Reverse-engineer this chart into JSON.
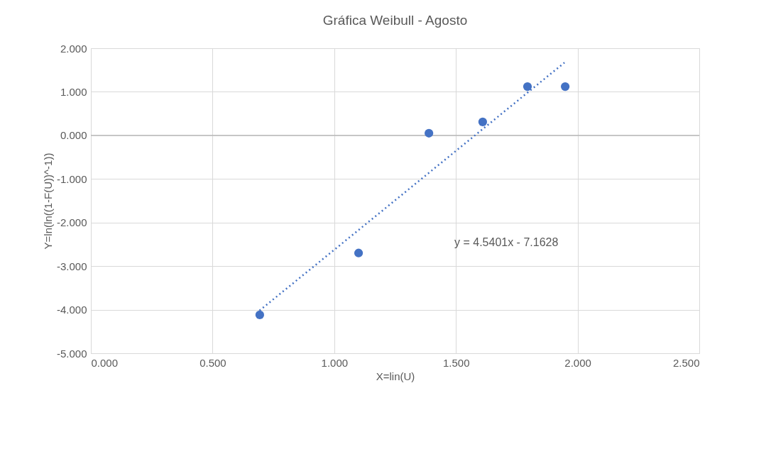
{
  "chart_data": {
    "type": "scatter",
    "title": "Gráfica Weibull - Agosto",
    "xlabel": "X=lin(U)",
    "ylabel": "Y=ln(ln((1-F(U))^-1))",
    "series": [
      {
        "type": "scatter",
        "color": "#4472c4",
        "marker": "circle",
        "x": [
          0.694,
          1.1,
          1.389,
          1.61,
          1.794,
          1.949
        ],
        "values": [
          -4.12,
          -2.7,
          0.05,
          0.31,
          1.12,
          1.12
        ]
      },
      {
        "type": "line",
        "color": "#4472c4",
        "line_style": "dotted",
        "marker": "none",
        "x": [
          0.693,
          1.946
        ],
        "values": [
          -4.02,
          1.67
        ]
      }
    ],
    "xlim": [
      0,
      2.5
    ],
    "ylim": [
      -5,
      2
    ],
    "xticks": [
      {
        "value": 0,
        "label": "0.000"
      },
      {
        "value": 0.5,
        "label": "0.500"
      },
      {
        "value": 1,
        "label": "1.000"
      },
      {
        "value": 1.5,
        "label": "1.500"
      },
      {
        "value": 2,
        "label": "2.000"
      },
      {
        "value": 2.5,
        "label": "2.500"
      }
    ],
    "yticks": [
      {
        "value": -5,
        "label": "-5.000"
      },
      {
        "value": -4,
        "label": "-4.000"
      },
      {
        "value": -3,
        "label": "-3.000"
      },
      {
        "value": -2,
        "label": "-2.000"
      },
      {
        "value": -1,
        "label": "-1.000"
      },
      {
        "value": 0,
        "label": "0.000"
      },
      {
        "value": 1,
        "label": "1.000"
      },
      {
        "value": 2,
        "label": "2.000"
      }
    ],
    "annotations": [
      "y = 4.5401x - 7.1628"
    ],
    "grid": true,
    "legend": false
  }
}
